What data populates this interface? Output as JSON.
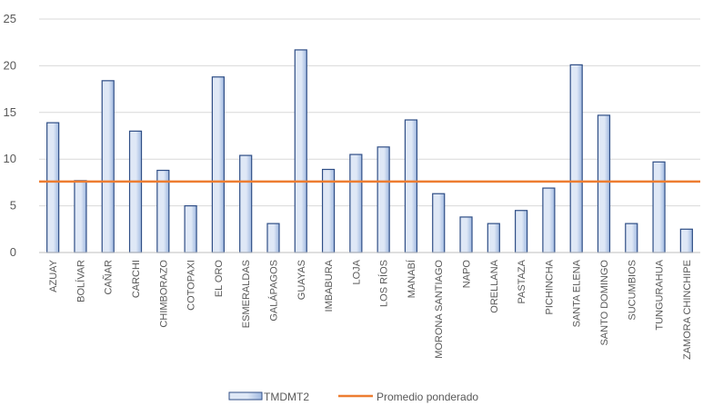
{
  "chart_data": {
    "type": "bar",
    "categories": [
      "AZUAY",
      "BOLÍVAR",
      "CAÑAR",
      "CARCHI",
      "CHIMBORAZO",
      "COTOPAXI",
      "EL ORO",
      "ESMERALDAS",
      "GALÁPAGOS",
      "GUAYAS",
      "IMBABURA",
      "LOJA",
      "LOS RÍOS",
      "MANABÍ",
      "MORONA SANTIAGO",
      "NAPO",
      "ORELLANA",
      "PASTAZA",
      "PICHINCHA",
      "SANTA ELENA",
      "SANTO DOMINGO",
      "SUCUMBIOS",
      "TUNGURAHUA",
      "ZAMORA CHINCHIPE"
    ],
    "series": [
      {
        "name": "TMDMT2",
        "values": [
          13.9,
          7.7,
          18.4,
          13.0,
          8.8,
          5.0,
          18.8,
          10.4,
          3.1,
          21.7,
          8.9,
          10.5,
          11.3,
          14.2,
          6.3,
          3.8,
          3.1,
          4.5,
          6.9,
          20.1,
          14.7,
          3.1,
          9.7,
          2.5
        ]
      }
    ],
    "reference_line": {
      "name": "Promedio ponderado",
      "value": 7.6
    },
    "yticks": [
      0,
      5,
      10,
      15,
      20,
      25
    ],
    "ylim": [
      0,
      25
    ],
    "grid": true,
    "legend_position": "bottom",
    "colors": {
      "bar_fill_light": "#dfe8f6",
      "bar_fill_dark": "#9fb8e0",
      "bar_stroke": "#2f4e86",
      "reference_line": "#ed7d31",
      "grid": "#d9d9d9",
      "axis": "#bfbfbf"
    }
  }
}
